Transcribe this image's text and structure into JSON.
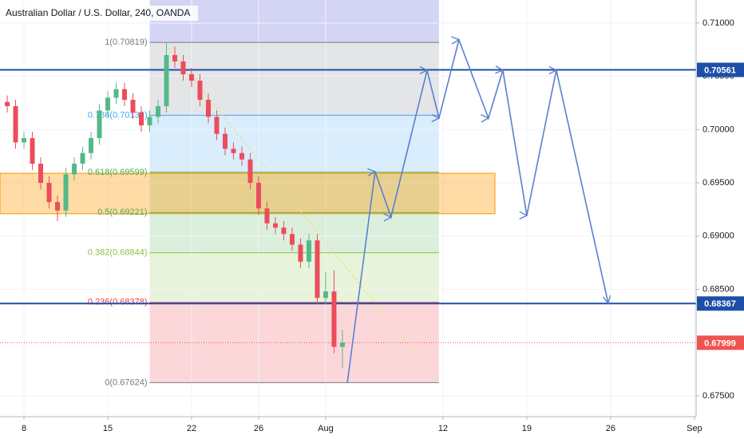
{
  "chart_data": {
    "type": "candlestick",
    "title": "Australian Dollar / U.S. Dollar, 240, OANDA",
    "up_color": "#53b987",
    "down_color": "#eb4d5c",
    "xlim": [
      -1.43,
      40.1
    ],
    "xticks": [
      {
        "value": 0,
        "label": "8"
      },
      {
        "value": 5,
        "label": "15"
      },
      {
        "value": 10,
        "label": "22"
      },
      {
        "value": 14,
        "label": "26"
      },
      {
        "value": 18,
        "label": "Aug"
      },
      {
        "value": 25,
        "label": "12"
      },
      {
        "value": 30,
        "label": "19"
      },
      {
        "value": 35,
        "label": "26"
      },
      {
        "value": 40,
        "label": "Sep"
      }
    ],
    "ylim": [
      0.67305,
      0.71217
    ],
    "yticks": [
      {
        "value": 0.71,
        "label": "0.71000"
      },
      {
        "value": 0.705,
        "label": "0.70500"
      },
      {
        "value": 0.7,
        "label": "0.70000"
      },
      {
        "value": 0.695,
        "label": "0.69500"
      },
      {
        "value": 0.69,
        "label": "0.69000"
      },
      {
        "value": 0.685,
        "label": "0.68500"
      },
      {
        "value": 0.675,
        "label": "0.67500"
      }
    ],
    "grid": true,
    "x": [
      -1,
      -0.5,
      0,
      0.5,
      1,
      1.5,
      2,
      2.5,
      3,
      3.5,
      4,
      4.5,
      5,
      5.5,
      6,
      6.5,
      7,
      7.5,
      8,
      8.5,
      9,
      9.5,
      10,
      10.5,
      11,
      11.5,
      12,
      12.5,
      13,
      13.5,
      14,
      14.5,
      15,
      15.5,
      16,
      16.5,
      17,
      17.5,
      18,
      18.5,
      19
    ],
    "open": [
      0.7026,
      0.7022,
      0.6988,
      0.6992,
      0.6968,
      0.695,
      0.6932,
      0.6924,
      0.6958,
      0.6968,
      0.6978,
      0.6992,
      0.7018,
      0.703,
      0.7038,
      0.7028,
      0.7016,
      0.7004,
      0.7012,
      0.7022,
      0.707,
      0.7064,
      0.7052,
      0.7046,
      0.7028,
      0.7012,
      0.6996,
      0.6982,
      0.6978,
      0.6972,
      0.695,
      0.6926,
      0.6912,
      0.6908,
      0.6902,
      0.6892,
      0.6876,
      0.6896,
      0.6842,
      0.6848,
      0.6796
    ],
    "high": [
      0.7032,
      0.7028,
      0.6998,
      0.6998,
      0.6974,
      0.6956,
      0.6938,
      0.6964,
      0.6974,
      0.6984,
      0.6998,
      0.7024,
      0.7036,
      0.7044,
      0.7044,
      0.7034,
      0.7022,
      0.7018,
      0.7028,
      0.7082,
      0.7078,
      0.707,
      0.7058,
      0.7052,
      0.7034,
      0.7018,
      0.7002,
      0.6988,
      0.6984,
      0.6978,
      0.6956,
      0.6932,
      0.6918,
      0.6914,
      0.6908,
      0.6898,
      0.6902,
      0.6902,
      0.6866,
      0.6868,
      0.6812
    ],
    "low": [
      0.7016,
      0.6982,
      0.6982,
      0.6962,
      0.6944,
      0.6926,
      0.6914,
      0.6918,
      0.6952,
      0.6962,
      0.6972,
      0.6986,
      0.7012,
      0.7024,
      0.7022,
      0.701,
      0.6998,
      0.6998,
      0.7006,
      0.7016,
      0.7058,
      0.7046,
      0.704,
      0.7022,
      0.7006,
      0.699,
      0.6976,
      0.6972,
      0.6966,
      0.6944,
      0.692,
      0.6906,
      0.6902,
      0.6896,
      0.6886,
      0.687,
      0.687,
      0.6836,
      0.6836,
      0.679,
      0.6776
    ],
    "close": [
      0.7022,
      0.6988,
      0.6992,
      0.6968,
      0.695,
      0.6932,
      0.6924,
      0.6958,
      0.6968,
      0.6978,
      0.6992,
      0.7018,
      0.703,
      0.7038,
      0.7028,
      0.7016,
      0.7004,
      0.7012,
      0.7022,
      0.707,
      0.7064,
      0.7052,
      0.7046,
      0.7028,
      0.7012,
      0.6996,
      0.6982,
      0.6978,
      0.6972,
      0.695,
      0.6926,
      0.6912,
      0.6908,
      0.6902,
      0.6892,
      0.6876,
      0.6896,
      0.6842,
      0.6848,
      0.6796,
      0.68
    ],
    "fib_x": [
      7.5,
      24.76
    ],
    "fib_top_fill": "#c5c6f2",
    "fib_levels": [
      {
        "value": 0.70819,
        "label": "1(0.70819)",
        "color": "#787b86"
      },
      {
        "value": 0.70135,
        "label": "0.786(0.70135)",
        "color": "#42a5f5"
      },
      {
        "value": 0.69599,
        "label": "0.618(0.69599)",
        "color": "#4caf50"
      },
      {
        "value": 0.69221,
        "label": "0.5(0.69221)",
        "color": "#4caf50"
      },
      {
        "value": 0.68844,
        "label": "0.382(0.68844)",
        "color": "#8bc34a"
      },
      {
        "value": 0.68378,
        "label": "0.236(0.68378)",
        "color": "#f23645"
      },
      {
        "value": 0.67624,
        "label": "0(0.67624)",
        "color": "#787b86"
      }
    ],
    "zone": {
      "x": [
        -1.43,
        28.1
      ],
      "y": [
        0.6921,
        0.6959
      ],
      "color": "#ff9800"
    },
    "trend_line": {
      "x": [
        8.57,
        24.67
      ],
      "y": [
        0.7077,
        0.6765
      ],
      "color": "#e8e36a"
    },
    "projection": {
      "x": [
        19.29,
        20.95,
        21.9,
        24.05,
        24.76,
        25.95,
        27.71,
        28.57,
        30.0,
        31.76,
        34.86
      ],
      "y": [
        0.6762,
        0.69606,
        0.69179,
        0.70558,
        0.70108,
        0.70843,
        0.70108,
        0.70558,
        0.69194,
        0.70558,
        0.68369
      ],
      "color": "#5b7fcf"
    },
    "price_lines": [
      {
        "value": 0.70561,
        "label": "0.70561",
        "color": "#1e4fa8"
      },
      {
        "value": 0.68367,
        "label": "0.68367",
        "color": "#1e4fa8"
      }
    ],
    "last_price": {
      "value": 0.67999,
      "label": "0.67999",
      "color": "#ef5350"
    }
  }
}
